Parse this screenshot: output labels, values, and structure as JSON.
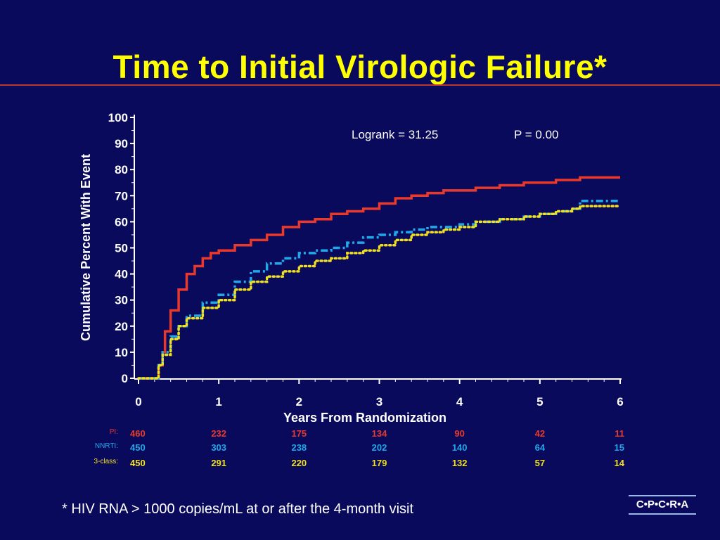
{
  "slide": {
    "title": "Time to Initial Virologic Failure*",
    "footnote": "* HIV RNA > 1000 copies/mL at or after the 4-month visit",
    "logo": "C•P•C•R•A",
    "colors": {
      "background": "#0a0a5c",
      "title": "#ffff00",
      "rule": "#c0392b"
    }
  },
  "chart_data": {
    "type": "line",
    "title": "",
    "xlabel": "Years  From  Randomization",
    "ylabel": "Cumulative  Percent  With  Event",
    "xlim": [
      0,
      6
    ],
    "ylim": [
      0,
      100
    ],
    "x_ticks": [
      "0",
      "1",
      "2",
      "3",
      "4",
      "5",
      "6"
    ],
    "y_ticks": [
      "0",
      "10",
      "20",
      "30",
      "40",
      "50",
      "60",
      "70",
      "80",
      "90",
      "100"
    ],
    "grid": false,
    "annotation": {
      "logrank": "Logrank = 31.25",
      "p_value": "P = 0.00"
    },
    "series": [
      {
        "name": "PI:",
        "color": "#e8392b",
        "style": "solid",
        "points": [
          [
            0,
            0
          ],
          [
            0.17,
            0
          ],
          [
            0.25,
            5
          ],
          [
            0.3,
            10
          ],
          [
            0.33,
            18
          ],
          [
            0.4,
            26
          ],
          [
            0.5,
            34
          ],
          [
            0.6,
            40
          ],
          [
            0.7,
            43
          ],
          [
            0.8,
            46
          ],
          [
            0.9,
            48
          ],
          [
            1,
            49
          ],
          [
            1.2,
            51
          ],
          [
            1.4,
            53
          ],
          [
            1.6,
            55
          ],
          [
            1.8,
            58
          ],
          [
            2,
            60
          ],
          [
            2.2,
            61
          ],
          [
            2.4,
            63
          ],
          [
            2.6,
            64
          ],
          [
            2.8,
            65
          ],
          [
            3,
            67
          ],
          [
            3.2,
            69
          ],
          [
            3.4,
            70
          ],
          [
            3.6,
            71
          ],
          [
            3.8,
            72
          ],
          [
            4,
            72
          ],
          [
            4.2,
            73
          ],
          [
            4.5,
            74
          ],
          [
            4.8,
            75
          ],
          [
            5,
            75
          ],
          [
            5.2,
            76
          ],
          [
            5.5,
            77
          ],
          [
            6,
            77
          ]
        ]
      },
      {
        "name": "NNRTI:",
        "color": "#20a8e8",
        "style": "dashdot",
        "points": [
          [
            0,
            0
          ],
          [
            0.17,
            0
          ],
          [
            0.25,
            5
          ],
          [
            0.3,
            10
          ],
          [
            0.4,
            16
          ],
          [
            0.5,
            20
          ],
          [
            0.6,
            24
          ],
          [
            0.8,
            29
          ],
          [
            1,
            32
          ],
          [
            1.2,
            37
          ],
          [
            1.4,
            41
          ],
          [
            1.6,
            44
          ],
          [
            1.8,
            46
          ],
          [
            2,
            48
          ],
          [
            2.2,
            49
          ],
          [
            2.4,
            50
          ],
          [
            2.6,
            52
          ],
          [
            2.8,
            54
          ],
          [
            3,
            55
          ],
          [
            3.2,
            56
          ],
          [
            3.4,
            57
          ],
          [
            3.6,
            58
          ],
          [
            3.8,
            58
          ],
          [
            4,
            59
          ],
          [
            4.2,
            60
          ],
          [
            4.5,
            61
          ],
          [
            4.8,
            62
          ],
          [
            5,
            63
          ],
          [
            5.2,
            64
          ],
          [
            5.4,
            65
          ],
          [
            5.5,
            68
          ],
          [
            6,
            68
          ]
        ]
      },
      {
        "name": "3-class:",
        "color": "#f0e020",
        "style": "dotted",
        "points": [
          [
            0,
            0
          ],
          [
            0.17,
            0
          ],
          [
            0.25,
            5
          ],
          [
            0.3,
            9
          ],
          [
            0.4,
            15
          ],
          [
            0.5,
            20
          ],
          [
            0.6,
            23
          ],
          [
            0.8,
            27
          ],
          [
            1,
            30
          ],
          [
            1.2,
            34
          ],
          [
            1.4,
            37
          ],
          [
            1.6,
            39
          ],
          [
            1.8,
            41
          ],
          [
            2,
            43
          ],
          [
            2.2,
            45
          ],
          [
            2.4,
            46
          ],
          [
            2.6,
            48
          ],
          [
            2.8,
            49
          ],
          [
            3,
            51
          ],
          [
            3.2,
            53
          ],
          [
            3.4,
            55
          ],
          [
            3.6,
            56
          ],
          [
            3.8,
            57
          ],
          [
            4,
            58
          ],
          [
            4.2,
            60
          ],
          [
            4.5,
            61
          ],
          [
            4.8,
            62
          ],
          [
            5,
            63
          ],
          [
            5.2,
            64
          ],
          [
            5.4,
            65
          ],
          [
            5.5,
            66
          ],
          [
            6,
            66
          ]
        ]
      }
    ],
    "at_risk": [
      {
        "label": "PI:",
        "color": "#e8392b",
        "values": [
          "460",
          "232",
          "175",
          "134",
          "90",
          "42",
          "11"
        ]
      },
      {
        "label": "NNRTI:",
        "color": "#20a8e8",
        "values": [
          "450",
          "303",
          "238",
          "202",
          "140",
          "64",
          "15"
        ]
      },
      {
        "label": "3-class:",
        "color": "#f0e020",
        "values": [
          "450",
          "291",
          "220",
          "179",
          "132",
          "57",
          "14"
        ]
      }
    ]
  }
}
